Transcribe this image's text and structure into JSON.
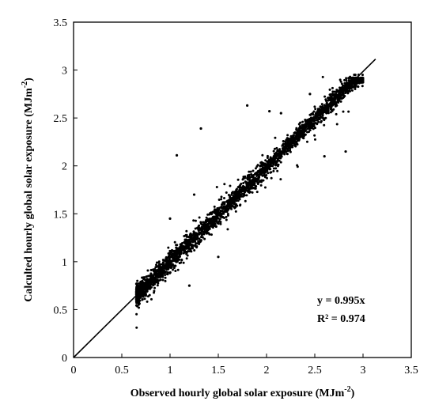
{
  "chart_data": {
    "type": "scatter",
    "xlabel": "Observed hourly global solar exposure (MJm",
    "ylabel": "Calculted hourly global solar exposure (MJm",
    "unit_superscript": "-2",
    "xlim": [
      0,
      3.5
    ],
    "ylim": [
      0,
      3.5
    ],
    "x_ticks": [
      "0",
      "0.5",
      "1",
      "1.5",
      "2",
      "2.5",
      "3",
      "3.5"
    ],
    "y_ticks": [
      "0",
      "0.5",
      "1",
      "1.5",
      "2",
      "2.5",
      "3",
      "3.5"
    ],
    "grid": false,
    "marker_color": "#000000",
    "fit_line": {
      "slope": 0.995,
      "x": [
        0,
        3.13
      ],
      "equation": "y = 0.995x",
      "r_squared": "R² = 0.974"
    },
    "points_description": {
      "x_range": [
        0.65,
        3.0
      ],
      "spread": 0.05
    },
    "outliers": [
      {
        "x": 1.07,
        "y": 2.11
      },
      {
        "x": 1.32,
        "y": 2.39
      },
      {
        "x": 1.8,
        "y": 2.63
      },
      {
        "x": 2.03,
        "y": 2.57
      },
      {
        "x": 2.82,
        "y": 2.15
      },
      {
        "x": 1.2,
        "y": 0.75
      },
      {
        "x": 1.5,
        "y": 1.05
      },
      {
        "x": 2.6,
        "y": 2.1
      },
      {
        "x": 1.0,
        "y": 1.45
      },
      {
        "x": 1.25,
        "y": 1.7
      },
      {
        "x": 2.15,
        "y": 2.55
      },
      {
        "x": 2.45,
        "y": 2.75
      }
    ]
  }
}
